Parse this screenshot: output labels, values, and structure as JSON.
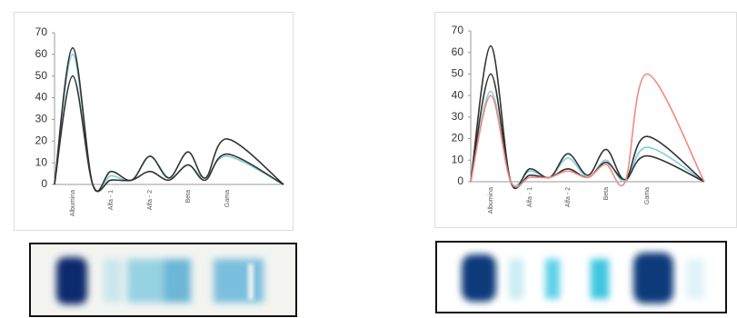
{
  "chart_data": [
    {
      "type": "line",
      "categories": [
        null,
        "Albumina",
        null,
        "Alfa - 1",
        null,
        "Alfa - 2",
        null,
        "Beta",
        null,
        "Gama",
        null
      ],
      "ylim": [
        0,
        70
      ],
      "yticks": [
        0,
        10,
        20,
        30,
        40,
        50,
        60,
        70
      ],
      "series": [
        {
          "color": "#7fd0e0",
          "values": [
            0,
            60,
            0,
            4,
            2,
            13,
            3,
            9,
            3,
            13,
            0
          ]
        },
        {
          "color": "#333333",
          "values": [
            0,
            50,
            0,
            2,
            2,
            6,
            2,
            9,
            2,
            14,
            0
          ]
        },
        {
          "color": "#333333",
          "values": [
            0,
            63,
            0,
            6,
            2,
            13,
            3,
            15,
            3,
            21,
            0
          ]
        }
      ]
    },
    {
      "type": "line",
      "categories": [
        null,
        "Albumina",
        null,
        "Alfa - 1",
        null,
        "Alfa - 2",
        null,
        "Beta",
        null,
        "Gama",
        null
      ],
      "ylim": [
        0,
        70
      ],
      "yticks": [
        0,
        10,
        20,
        30,
        40,
        50,
        60,
        70
      ],
      "series": [
        {
          "color": "#7fd0e0",
          "values": [
            0,
            42,
            0,
            5,
            2,
            11,
            2,
            10,
            0,
            16,
            0
          ]
        },
        {
          "color": "#333333",
          "values": [
            0,
            50,
            0,
            3,
            2,
            6,
            2,
            9,
            1,
            12,
            0
          ]
        },
        {
          "color": "#333333",
          "values": [
            0,
            63,
            0,
            6,
            2,
            13,
            3,
            15,
            1,
            21,
            0
          ]
        },
        {
          "color": "#f08a80",
          "values": [
            0,
            40,
            0,
            2,
            2,
            5,
            2,
            8,
            0,
            50,
            0
          ]
        }
      ]
    }
  ]
}
